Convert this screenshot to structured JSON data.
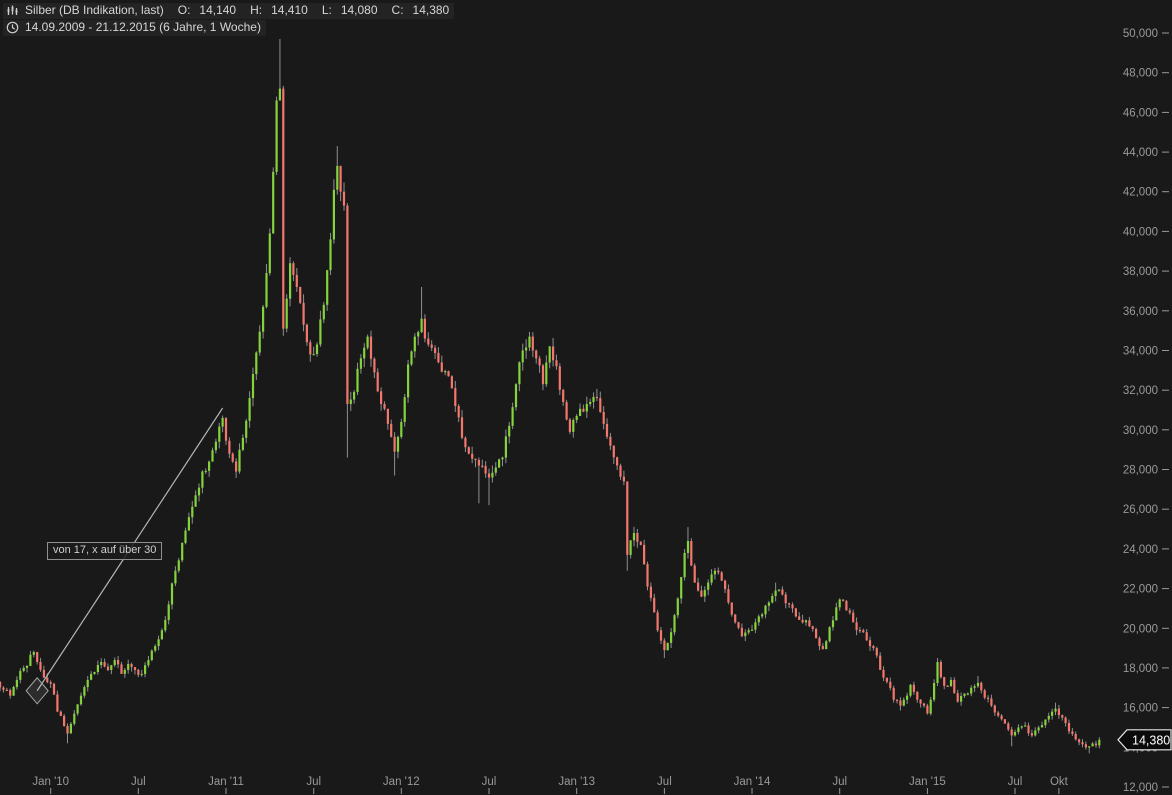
{
  "header": {
    "instrument": "Silber (DB Indikation, last)",
    "o_label": "O:",
    "o": "14,140",
    "h_label": "H:",
    "h": "14,410",
    "l_label": "L:",
    "l": "14,080",
    "c_label": "C:",
    "c": "14,380",
    "range": "14.09.2009 - 21.12.2015 (6 Jahre, 1 Woche)"
  },
  "annotation": {
    "text": "von 17, x auf über 30",
    "anchor_week": 15,
    "anchor_price": 24350
  },
  "price_tag": {
    "label": "14,380",
    "price": 14380
  },
  "colors": {
    "background": "#191919",
    "bull": "#85d33c",
    "bear": "#f4776d",
    "wick": "#8f8f8f",
    "axis_text": "#9a9a9a",
    "trendline": "#b5b5b5",
    "tag_bg": "#0b0b0b",
    "tag_border": "#e6e6e6",
    "tag_text": "#ffffff"
  },
  "chart_data": {
    "type": "candlestick",
    "title": "Silber (DB Indikation, last)",
    "timeframe": "1 Woche",
    "period": "14.09.2009 - 21.12.2015",
    "weeks_total": 328,
    "y_axis": {
      "min": 12000,
      "max": 50000,
      "tick_step": 2000,
      "grid": false,
      "ticks": [
        {
          "value": 50000,
          "label": "50,000"
        },
        {
          "value": 48000,
          "label": "48,000"
        },
        {
          "value": 46000,
          "label": "46,000"
        },
        {
          "value": 44000,
          "label": "44,000"
        },
        {
          "value": 42000,
          "label": "42,000"
        },
        {
          "value": 40000,
          "label": "40,000"
        },
        {
          "value": 38000,
          "label": "38,000"
        },
        {
          "value": 36000,
          "label": "36,000"
        },
        {
          "value": 34000,
          "label": "34,000"
        },
        {
          "value": 32000,
          "label": "32,000"
        },
        {
          "value": 30000,
          "label": "30,000"
        },
        {
          "value": 28000,
          "label": "28,000"
        },
        {
          "value": 26000,
          "label": "26,000"
        },
        {
          "value": 24000,
          "label": "24,000"
        },
        {
          "value": 22000,
          "label": "22,000"
        },
        {
          "value": 20000,
          "label": "20,000"
        },
        {
          "value": 18000,
          "label": "18,000"
        },
        {
          "value": 16000,
          "label": "16,000"
        },
        {
          "value": 14000,
          "label": "14,000"
        },
        {
          "value": 12000,
          "label": "12,000"
        }
      ]
    },
    "x_ticks": [
      {
        "label": "Jan '10",
        "week": 16
      },
      {
        "label": "Jul",
        "week": 42
      },
      {
        "label": "Jan '11",
        "week": 68
      },
      {
        "label": "Jul",
        "week": 94
      },
      {
        "label": "Jan '12",
        "week": 120
      },
      {
        "label": "Jul",
        "week": 146
      },
      {
        "label": "Jan '13",
        "week": 172
      },
      {
        "label": "Jul",
        "week": 198
      },
      {
        "label": "Jan '14",
        "week": 224
      },
      {
        "label": "Jul",
        "week": 250
      },
      {
        "label": "Jan '15",
        "week": 276
      },
      {
        "label": "Jul",
        "week": 302
      },
      {
        "label": "Okt",
        "week": 315
      }
    ],
    "close_anchors": [
      [
        0,
        17300
      ],
      [
        2,
        16900
      ],
      [
        4,
        16600
      ],
      [
        6,
        17400
      ],
      [
        8,
        18000
      ],
      [
        11,
        18800
      ],
      [
        13,
        17900
      ],
      [
        16,
        17200
      ],
      [
        18,
        15800
      ],
      [
        21,
        14700
      ],
      [
        23,
        15700
      ],
      [
        25,
        16600
      ],
      [
        27,
        17400
      ],
      [
        29,
        17800
      ],
      [
        31,
        18300
      ],
      [
        33,
        17900
      ],
      [
        35,
        18400
      ],
      [
        37,
        17700
      ],
      [
        39,
        18200
      ],
      [
        41,
        17900
      ],
      [
        43,
        17700
      ],
      [
        45,
        18400
      ],
      [
        47,
        19100
      ],
      [
        49,
        19900
      ],
      [
        51,
        21200
      ],
      [
        53,
        22900
      ],
      [
        55,
        24300
      ],
      [
        57,
        25600
      ],
      [
        59,
        26700
      ],
      [
        61,
        27900
      ],
      [
        63,
        28400
      ],
      [
        65,
        29400
      ],
      [
        67,
        30600
      ],
      [
        69,
        28800
      ],
      [
        71,
        27900
      ],
      [
        73,
        29600
      ],
      [
        75,
        31600
      ],
      [
        77,
        33900
      ],
      [
        79,
        36200
      ],
      [
        80,
        37900
      ],
      [
        81,
        39900
      ],
      [
        82,
        43000
      ],
      [
        83,
        46600
      ],
      [
        84,
        47200
      ],
      [
        85,
        35100
      ],
      [
        87,
        38400
      ],
      [
        89,
        37200
      ],
      [
        91,
        35300
      ],
      [
        93,
        33800
      ],
      [
        95,
        34300
      ],
      [
        97,
        36300
      ],
      [
        99,
        39600
      ],
      [
        100,
        42100
      ],
      [
        101,
        43300
      ],
      [
        102,
        42000
      ],
      [
        103,
        41300
      ],
      [
        104,
        31300
      ],
      [
        106,
        31900
      ],
      [
        108,
        33600
      ],
      [
        110,
        34700
      ],
      [
        112,
        32900
      ],
      [
        114,
        31300
      ],
      [
        116,
        30300
      ],
      [
        118,
        28900
      ],
      [
        120,
        30400
      ],
      [
        122,
        33300
      ],
      [
        124,
        34700
      ],
      [
        126,
        35600
      ],
      [
        128,
        34300
      ],
      [
        131,
        33400
      ],
      [
        134,
        32700
      ],
      [
        136,
        31200
      ],
      [
        138,
        29600
      ],
      [
        140,
        28800
      ],
      [
        143,
        28200
      ],
      [
        146,
        27600
      ],
      [
        148,
        28100
      ],
      [
        150,
        28600
      ],
      [
        152,
        30200
      ],
      [
        154,
        32300
      ],
      [
        156,
        34000
      ],
      [
        158,
        34700
      ],
      [
        160,
        33600
      ],
      [
        162,
        32300
      ],
      [
        164,
        34200
      ],
      [
        166,
        33200
      ],
      [
        168,
        31400
      ],
      [
        170,
        29900
      ],
      [
        172,
        30700
      ],
      [
        175,
        31300
      ],
      [
        178,
        31600
      ],
      [
        180,
        30300
      ],
      [
        182,
        29200
      ],
      [
        184,
        28200
      ],
      [
        186,
        27400
      ],
      [
        187,
        23700
      ],
      [
        189,
        24800
      ],
      [
        191,
        24200
      ],
      [
        193,
        22100
      ],
      [
        195,
        20800
      ],
      [
        196,
        19900
      ],
      [
        198,
        18900
      ],
      [
        200,
        19800
      ],
      [
        202,
        21500
      ],
      [
        204,
        23800
      ],
      [
        205,
        24400
      ],
      [
        207,
        22300
      ],
      [
        209,
        21600
      ],
      [
        211,
        22300
      ],
      [
        213,
        22900
      ],
      [
        215,
        22400
      ],
      [
        217,
        21300
      ],
      [
        219,
        20300
      ],
      [
        221,
        19600
      ],
      [
        223,
        19900
      ],
      [
        225,
        20300
      ],
      [
        227,
        20700
      ],
      [
        229,
        21300
      ],
      [
        231,
        21900
      ],
      [
        233,
        21700
      ],
      [
        235,
        21200
      ],
      [
        237,
        20600
      ],
      [
        239,
        20300
      ],
      [
        241,
        20100
      ],
      [
        243,
        19500
      ],
      [
        245,
        18950
      ],
      [
        248,
        20400
      ],
      [
        250,
        21450
      ],
      [
        252,
        20900
      ],
      [
        254,
        20300
      ],
      [
        256,
        19900
      ],
      [
        258,
        19400
      ],
      [
        260,
        19000
      ],
      [
        262,
        17900
      ],
      [
        264,
        17300
      ],
      [
        266,
        16400
      ],
      [
        268,
        16100
      ],
      [
        270,
        16600
      ],
      [
        271,
        17150
      ],
      [
        273,
        16400
      ],
      [
        275,
        16100
      ],
      [
        276,
        15700
      ],
      [
        277,
        16400
      ],
      [
        279,
        18300
      ],
      [
        281,
        17100
      ],
      [
        283,
        17400
      ],
      [
        285,
        16300
      ],
      [
        287,
        16700
      ],
      [
        289,
        17000
      ],
      [
        291,
        17250
      ],
      [
        293,
        16500
      ],
      [
        295,
        16100
      ],
      [
        297,
        15600
      ],
      [
        299,
        15200
      ],
      [
        301,
        14600
      ],
      [
        303,
        15000
      ],
      [
        305,
        15100
      ],
      [
        307,
        14600
      ],
      [
        309,
        15000
      ],
      [
        311,
        15400
      ],
      [
        313,
        15800
      ],
      [
        314,
        15950
      ],
      [
        316,
        15500
      ],
      [
        318,
        14800
      ],
      [
        320,
        14400
      ],
      [
        322,
        14150
      ],
      [
        324,
        14050
      ],
      [
        326,
        14100
      ],
      [
        327,
        14380
      ]
    ],
    "wick_extremes": {
      "21": {
        "low": 14200
      },
      "84": {
        "high": 49700
      },
      "101": {
        "high": 44300
      },
      "104": {
        "low": 28600
      },
      "118": {
        "low": 27700
      },
      "126": {
        "high": 37200
      },
      "143": {
        "low": 26300
      },
      "146": {
        "low": 26200
      },
      "187": {
        "low": 22900
      },
      "198": {
        "low": 18500
      },
      "205": {
        "high": 25100
      },
      "231": {
        "high": 22300
      },
      "268": {
        "low": 15850
      },
      "279": {
        "high": 18500
      },
      "291": {
        "high": 17600
      },
      "301": {
        "low": 14050
      },
      "314": {
        "high": 16250
      },
      "324": {
        "low": 13700
      }
    },
    "trendline": {
      "from_week": 12,
      "from_price": 16850,
      "to_week": 67,
      "to_price": 31100
    },
    "last_close": 14380
  }
}
